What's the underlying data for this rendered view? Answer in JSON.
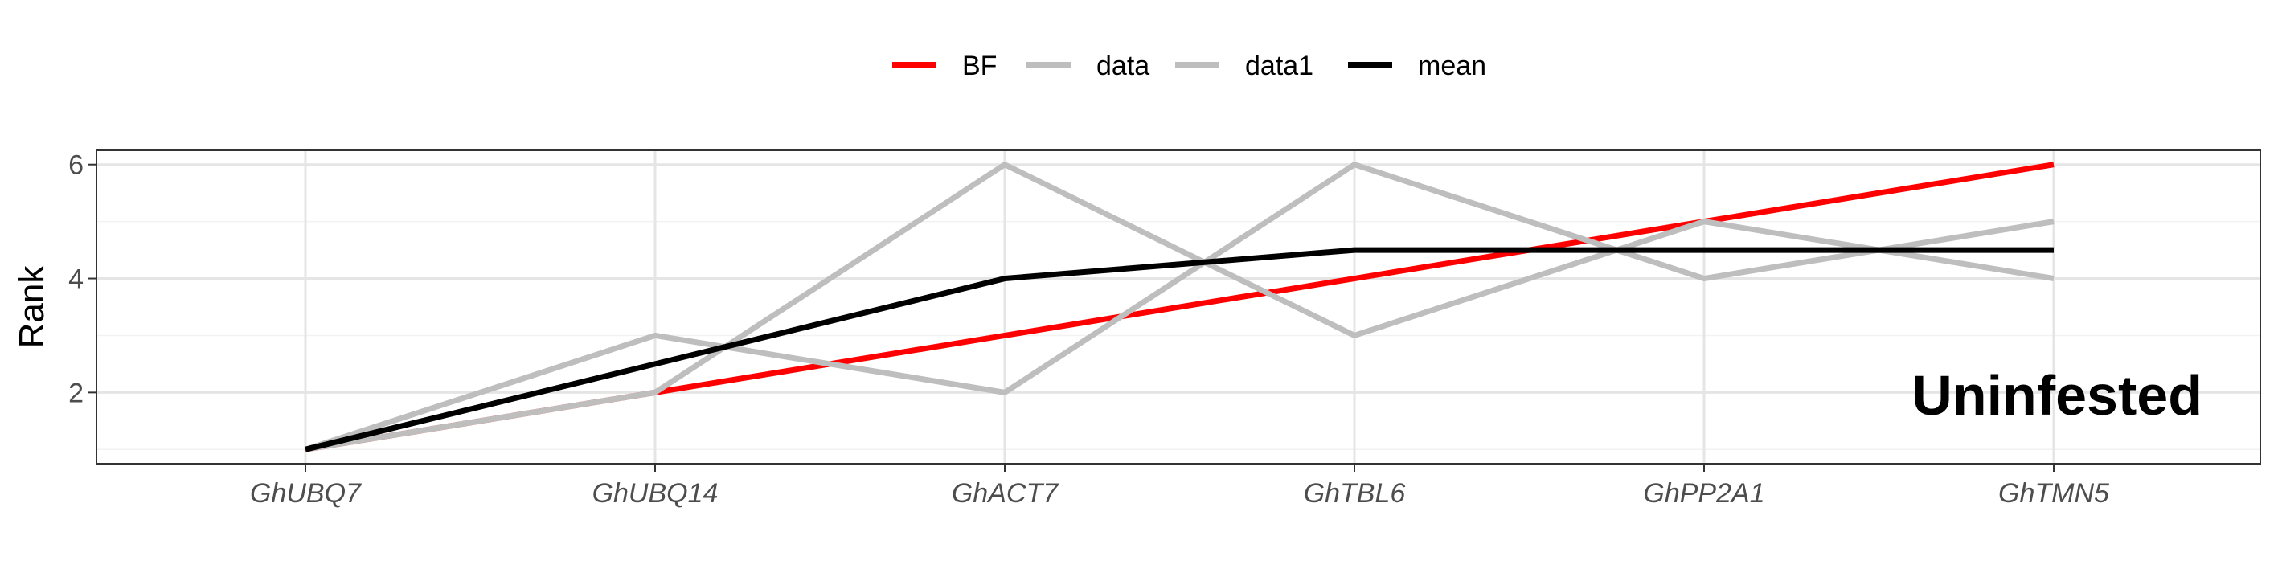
{
  "chart_data": {
    "type": "line",
    "categories": [
      "GhUBQ7",
      "GhUBQ14",
      "GhACT7",
      "GhTBL6",
      "GhPP2A1",
      "GhTMN5"
    ],
    "series": [
      {
        "name": "BF",
        "color": "#ff0000",
        "values": [
          1,
          2,
          3,
          4,
          5,
          6
        ]
      },
      {
        "name": "data",
        "color": "#bebebe",
        "values": [
          1,
          3,
          2,
          6,
          4,
          5
        ]
      },
      {
        "name": "data1",
        "color": "#bebebe",
        "values": [
          1,
          2,
          6,
          3,
          5,
          4
        ]
      },
      {
        "name": "mean",
        "color": "#000000",
        "values": [
          1,
          2.5,
          4,
          4.5,
          4.5,
          4.5
        ]
      }
    ],
    "title": "",
    "xlabel": "",
    "ylabel": "Rank",
    "ylim": [
      0.75,
      6.25
    ],
    "yticks": [
      2,
      4,
      6
    ],
    "grid": true,
    "legend_position": "top",
    "annotation": "Uninfested"
  }
}
